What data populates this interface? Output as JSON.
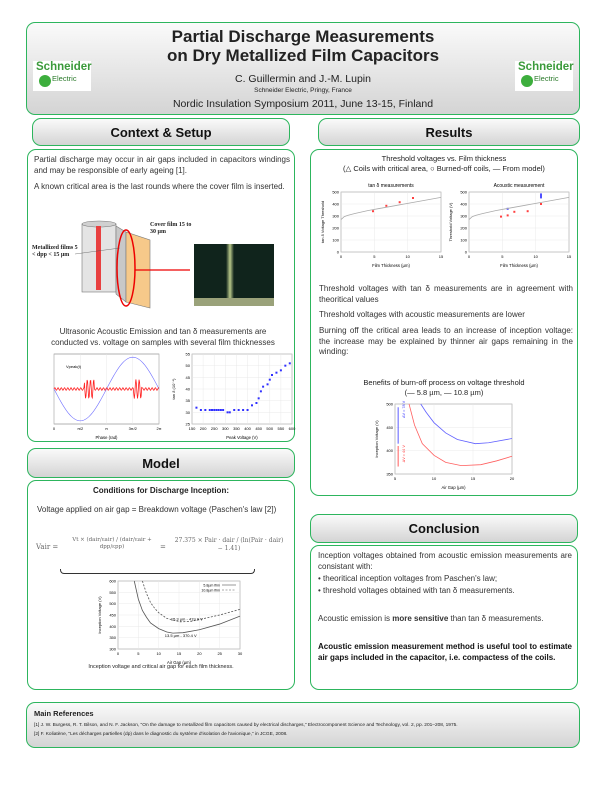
{
  "header": {
    "title_line1": "Partial Discharge Measurements",
    "title_line2": "on Dry Metallized Film Capacitors",
    "authors": "C. Guillermin and J.-M. Lupin",
    "affiliation": "Schneider Electric, Pringy, France",
    "conference": "Nordic Insulation Symposium 2011, June 13-15, Finland",
    "logo_text": "Schneider Electric"
  },
  "context": {
    "title": "Context & Setup",
    "p1": "Partial discharge may occur in air gaps included in capacitors windings and may be responsible of early ageing [1].",
    "p2": "A known critical area is the last rounds where the cover film is inserted.",
    "fig_cover_label": "Cover film 15 to 30 µm",
    "fig_metal_label": "Metallized films 5 < dpp < 15 µm",
    "p3": "Ultrasonic Acoustic Emission and tan δ measurements are conducted vs. voltage on samples with several film thicknesses"
  },
  "model": {
    "title": "Model",
    "subtitle": "Conditions for Discharge Inception:",
    "p1": "Voltage applied on air gap = Breakdown voltage (Paschen's law [2])",
    "eq_left": "Vair =",
    "eq_mid": "Vt × (dair/εair) / (dair/εair + dpp/εpp)",
    "eq_eq": "=",
    "eq_right": "27.375 × Pair · dair / (ln(Pair · dair) − 1.41)",
    "caption": "Inception voltage and critical air gap for each film thickness."
  },
  "results": {
    "title": "Results",
    "fig_title": "Threshold voltages vs. Film thickness",
    "fig_legend": "(△ Coils with critical area, ○ Burned-off coils, — From model)",
    "p1": "Threshold voltages with tan δ measurements are in agreement with theoritical values",
    "p2": "Threshold voltages with acoustic measurements are lower",
    "p3": "Burning off the critical area leads to an increase of inception voltage: the increase may be explained by thinner air gaps remaining in the winding:",
    "fig2_title": "Benefits of burn-off process on voltage threshold",
    "fig2_legend": "(— 5.8 µm, — 10.8 µm)"
  },
  "conclusion": {
    "title": "Conclusion",
    "p1": "Inception voltages obtained from acoustic emission measurements are consistant with:",
    "b1": "theoritical inception voltages from Paschen's law;",
    "b2": "threshold voltages obtained with tan δ measurements.",
    "p2a": "Acoustic emission is ",
    "p2b": "more sensitive",
    "p2c": " than tan δ measurements.",
    "p3": "Acoustic emission measurement method is useful tool to estimate air gaps included in the capacitor, i.e. compactess of the coils."
  },
  "references": {
    "title": "Main References",
    "r1": "[1] J. W. Burgess, R. T. Bilson, and N. F. Jackson, \"On the damage to metallized film capacitors caused by electrical discharges,\" Electrocomponent Science and Technology, vol. 2, pp. 201–208, 1975.",
    "r2": "[2] F. Koliatène, \"Les décharges partielles (dp) dans le diagnostic du système d'isolation de l'avionique,\" in JCGE, 2008."
  },
  "colors": {
    "accent": "#2db55d",
    "red": "#ff4040",
    "blue": "#5050ff"
  },
  "chart_data": [
    {
      "id": "tand",
      "type": "scatter",
      "title": "tan δ measurements",
      "xlabel": "Film Thickness (µm)",
      "ylabel": "tan δ Voltage Threshold",
      "xlim": [
        0,
        15
      ],
      "ylim": [
        0,
        500
      ],
      "xticks": [
        0,
        5,
        10,
        15
      ],
      "yticks": [
        0,
        100,
        200,
        300,
        400,
        500
      ],
      "series": [
        {
          "kind": "points",
          "color": "#ff4040",
          "x": [
            4.8,
            6.8,
            8.8,
            10.8
          ],
          "y": [
            340,
            385,
            415,
            450
          ]
        },
        {
          "kind": "line",
          "color": "#aaaaaa",
          "x": [
            0,
            0.5,
            1,
            2,
            4,
            6,
            8,
            10,
            12,
            15
          ],
          "y": [
            270,
            295,
            305,
            320,
            345,
            365,
            385,
            405,
            425,
            455
          ]
        }
      ]
    },
    {
      "id": "acou",
      "type": "scatter",
      "title": "Acoustic measurement",
      "xlabel": "Film Thickness (µm)",
      "ylabel": "Threshold Voltage (V)",
      "xlim": [
        0,
        15
      ],
      "ylim": [
        0,
        500
      ],
      "xticks": [
        0,
        5,
        10,
        15
      ],
      "yticks": [
        0,
        100,
        200,
        300,
        400,
        500
      ],
      "series": [
        {
          "kind": "points",
          "color": "#ff4040",
          "x": [
            4.8,
            5.8,
            6.8,
            8.8,
            10.8
          ],
          "y": [
            295,
            305,
            335,
            340,
            400
          ]
        },
        {
          "kind": "points",
          "color": "#5050ff",
          "x": [
            5.8,
            10.8,
            10.8,
            10.8,
            10.8
          ],
          "y": [
            360,
            455,
            465,
            470,
            480
          ]
        },
        {
          "kind": "line",
          "color": "#aaaaaa",
          "x": [
            0,
            0.5,
            1,
            2,
            4,
            6,
            8,
            10,
            12,
            15
          ],
          "y": [
            270,
            295,
            305,
            320,
            345,
            365,
            385,
            405,
            425,
            455
          ]
        }
      ]
    },
    {
      "id": "wave",
      "type": "line",
      "title": "",
      "xlabel": "Phase (rad)",
      "ylabel": "",
      "annotation": "Vpeak(t)",
      "xlim": [
        0,
        6.283
      ],
      "ylim": [
        -1.1,
        1.1
      ],
      "xticklabels": [
        "0",
        "π/2",
        "π",
        "3π/2",
        "2π"
      ],
      "xticks": [
        0,
        1.571,
        3.1416,
        4.712,
        6.283
      ],
      "yticks": [],
      "series": [
        {
          "kind": "sine",
          "color": "#7070ff"
        },
        {
          "kind": "noise",
          "color": "#ff2020"
        }
      ]
    },
    {
      "id": "tvp",
      "type": "scatter",
      "title": "",
      "xlabel": "Peak Voltage (V)",
      "ylabel": "tan δ (10⁻⁴)",
      "xlim": [
        150,
        600
      ],
      "ylim": [
        25,
        55
      ],
      "xticks": [
        150,
        200,
        250,
        300,
        350,
        400,
        450,
        500,
        550,
        600
      ],
      "yticks": [
        25,
        30,
        35,
        40,
        45,
        50,
        55
      ],
      "series": [
        {
          "kind": "points",
          "color": "#3030ff",
          "x": [
            170,
            190,
            210,
            230,
            240,
            250,
            260,
            270,
            280,
            290,
            310,
            320,
            340,
            360,
            380,
            400,
            420,
            440,
            450,
            460,
            470,
            490,
            500,
            510,
            530,
            550,
            570,
            590
          ],
          "y": [
            32,
            31,
            31,
            31,
            31,
            31,
            31,
            31,
            31,
            31,
            30,
            30,
            31,
            31,
            31,
            31,
            33,
            34,
            36,
            39,
            41,
            42,
            44,
            46,
            47,
            48,
            50,
            51
          ]
        }
      ]
    },
    {
      "id": "pasch",
      "type": "line",
      "title": "",
      "xlabel": "Air Gap (µm)",
      "ylabel": "Inception Voltage (V)",
      "xlim": [
        0,
        30
      ],
      "ylim": [
        300,
        600
      ],
      "xticks": [
        0,
        5,
        10,
        15,
        20,
        25,
        30
      ],
      "yticks": [
        300,
        350,
        400,
        450,
        500,
        550,
        600
      ],
      "annotations": [
        "15.3 µm - 419.9 V",
        "13.5 µm - 370.4 V"
      ],
      "series": [
        {
          "name": "5.8µm film",
          "kind": "line",
          "color": "#555555",
          "x": [
            4,
            5,
            6,
            7,
            8,
            10,
            12,
            13.5,
            16,
            20,
            25,
            30
          ],
          "y": [
            600,
            520,
            470,
            440,
            415,
            390,
            375,
            370,
            372,
            385,
            410,
            445
          ]
        },
        {
          "name": "10.8µm film",
          "kind": "dash",
          "color": "#555555",
          "x": [
            6,
            7,
            8,
            9,
            10,
            12,
            15.3,
            18,
            20,
            25,
            30
          ],
          "y": [
            600,
            545,
            505,
            480,
            460,
            435,
            420,
            422,
            430,
            450,
            475
          ]
        }
      ]
    },
    {
      "id": "burn",
      "type": "line",
      "title": "",
      "xlabel": "Air Gap (µm)",
      "ylabel": "Inception Voltage (V)",
      "xlim": [
        5,
        20
      ],
      "ylim": [
        350,
        500
      ],
      "xticks": [
        5,
        10,
        15,
        20
      ],
      "yticks": [
        350,
        400,
        450,
        500
      ],
      "annotations": [
        "ΔV = 78 V",
        "ΔV = 44 V"
      ],
      "series": [
        {
          "kind": "line",
          "color": "#ff6060",
          "x": [
            6.8,
            7.5,
            8.5,
            10,
            11.5,
            13.5,
            16,
            18,
            20
          ],
          "y": [
            500,
            455,
            415,
            390,
            375,
            368,
            370,
            378,
            388
          ]
        },
        {
          "kind": "line",
          "color": "#6060ff",
          "x": [
            8.3,
            9,
            10,
            11.5,
            13,
            15.3,
            17,
            20
          ],
          "y": [
            500,
            482,
            460,
            438,
            424,
            415,
            417,
            426
          ]
        }
      ]
    }
  ]
}
